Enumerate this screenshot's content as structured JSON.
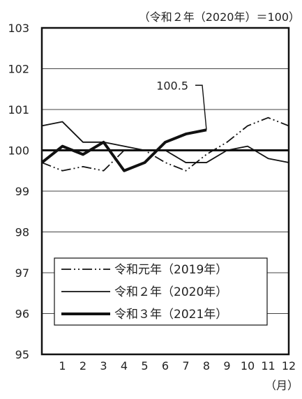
{
  "chart_data": {
    "type": "line",
    "title": "（令和２年（2020年）＝100）",
    "xlabel": "（月）",
    "ylabel": "",
    "ylim": [
      95,
      103
    ],
    "xlim": [
      0,
      12
    ],
    "y_ticks": [
      "95",
      "96",
      "97",
      "98",
      "99",
      "100",
      "101",
      "102",
      "103"
    ],
    "x_ticks": [
      "1",
      "2",
      "3",
      "4",
      "5",
      "6",
      "7",
      "8",
      "9",
      "10",
      "11",
      "12"
    ],
    "grid": true,
    "reference_line": 100,
    "legend_position": "bottom-left",
    "series": [
      {
        "name": "令和元年（2019年）",
        "style": "dash-dot-dot",
        "x": [
          0,
          1,
          2,
          3,
          4,
          5,
          6,
          7,
          8,
          9,
          10,
          11,
          12
        ],
        "values": [
          99.7,
          99.5,
          99.6,
          99.5,
          100.0,
          100.0,
          99.7,
          99.5,
          99.9,
          100.2,
          100.6,
          100.8,
          100.6
        ]
      },
      {
        "name": "令和２年（2020年）",
        "style": "thin-solid",
        "x": [
          0,
          1,
          2,
          3,
          4,
          5,
          6,
          7,
          8,
          9,
          10,
          11,
          12
        ],
        "values": [
          100.6,
          100.7,
          100.2,
          100.2,
          100.1,
          100.0,
          100.0,
          99.7,
          99.7,
          100.0,
          100.1,
          99.8,
          99.7
        ]
      },
      {
        "name": "令和３年（2021年）",
        "style": "thick-solid",
        "x": [
          0,
          1,
          2,
          3,
          4,
          5,
          6,
          7,
          8
        ],
        "values": [
          99.7,
          100.1,
          99.9,
          100.2,
          99.5,
          99.7,
          100.2,
          100.4,
          100.5
        ]
      }
    ],
    "annotation": {
      "text": "100.5",
      "target_series": 2,
      "target_index": 8
    }
  }
}
